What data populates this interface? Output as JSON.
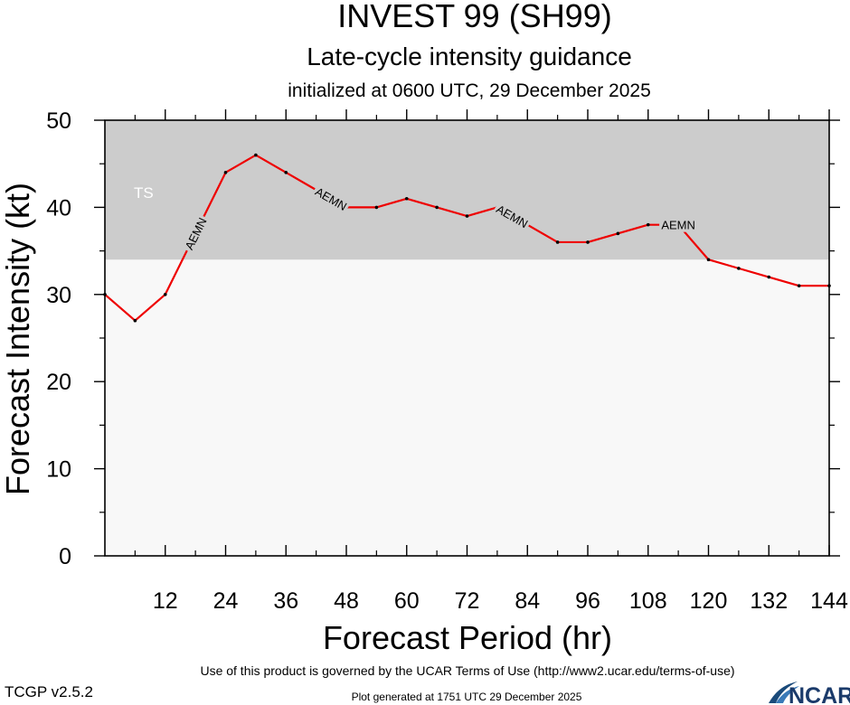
{
  "chart_data": {
    "type": "line",
    "title": "INVEST 99 (SH99)",
    "subtitle": "Late-cycle intensity guidance",
    "init_text": "initialized at 0600 UTC, 29 December 2025",
    "xlabel": "Forecast Period (hr)",
    "ylabel": "Forecast Intensity (kt)",
    "xlim": [
      0,
      144
    ],
    "ylim": [
      0,
      50
    ],
    "x_ticks": [
      12,
      24,
      36,
      48,
      60,
      72,
      84,
      96,
      108,
      120,
      132,
      144
    ],
    "y_ticks": [
      0,
      10,
      20,
      30,
      40,
      50
    ],
    "band": {
      "label": "TS",
      "from": 34,
      "to": 50,
      "color": "#cccccc"
    },
    "background_color": "#f8f8f8",
    "series": [
      {
        "name": "AEMN",
        "color": "#ee0000",
        "x": [
          0,
          6,
          12,
          18,
          24,
          30,
          36,
          42,
          48,
          54,
          60,
          66,
          72,
          78,
          84,
          90,
          96,
          102,
          108,
          114,
          120,
          126,
          132,
          138,
          144
        ],
        "y": [
          30,
          27,
          30,
          37,
          44,
          46,
          44,
          42,
          40,
          40,
          41,
          40,
          39,
          40,
          38,
          36,
          36,
          37,
          38,
          38,
          34,
          33,
          32,
          31,
          31
        ],
        "label_positions_hr": [
          18,
          45,
          81,
          114
        ]
      }
    ]
  },
  "footer": {
    "terms": "Use of this product is governed by the UCAR Terms of Use (http://www2.ucar.edu/terms-of-use)",
    "version": "TCGP v2.5.2",
    "generated": "Plot generated at 1751 UTC   29 December 2025",
    "logo_text": "NCAR"
  }
}
